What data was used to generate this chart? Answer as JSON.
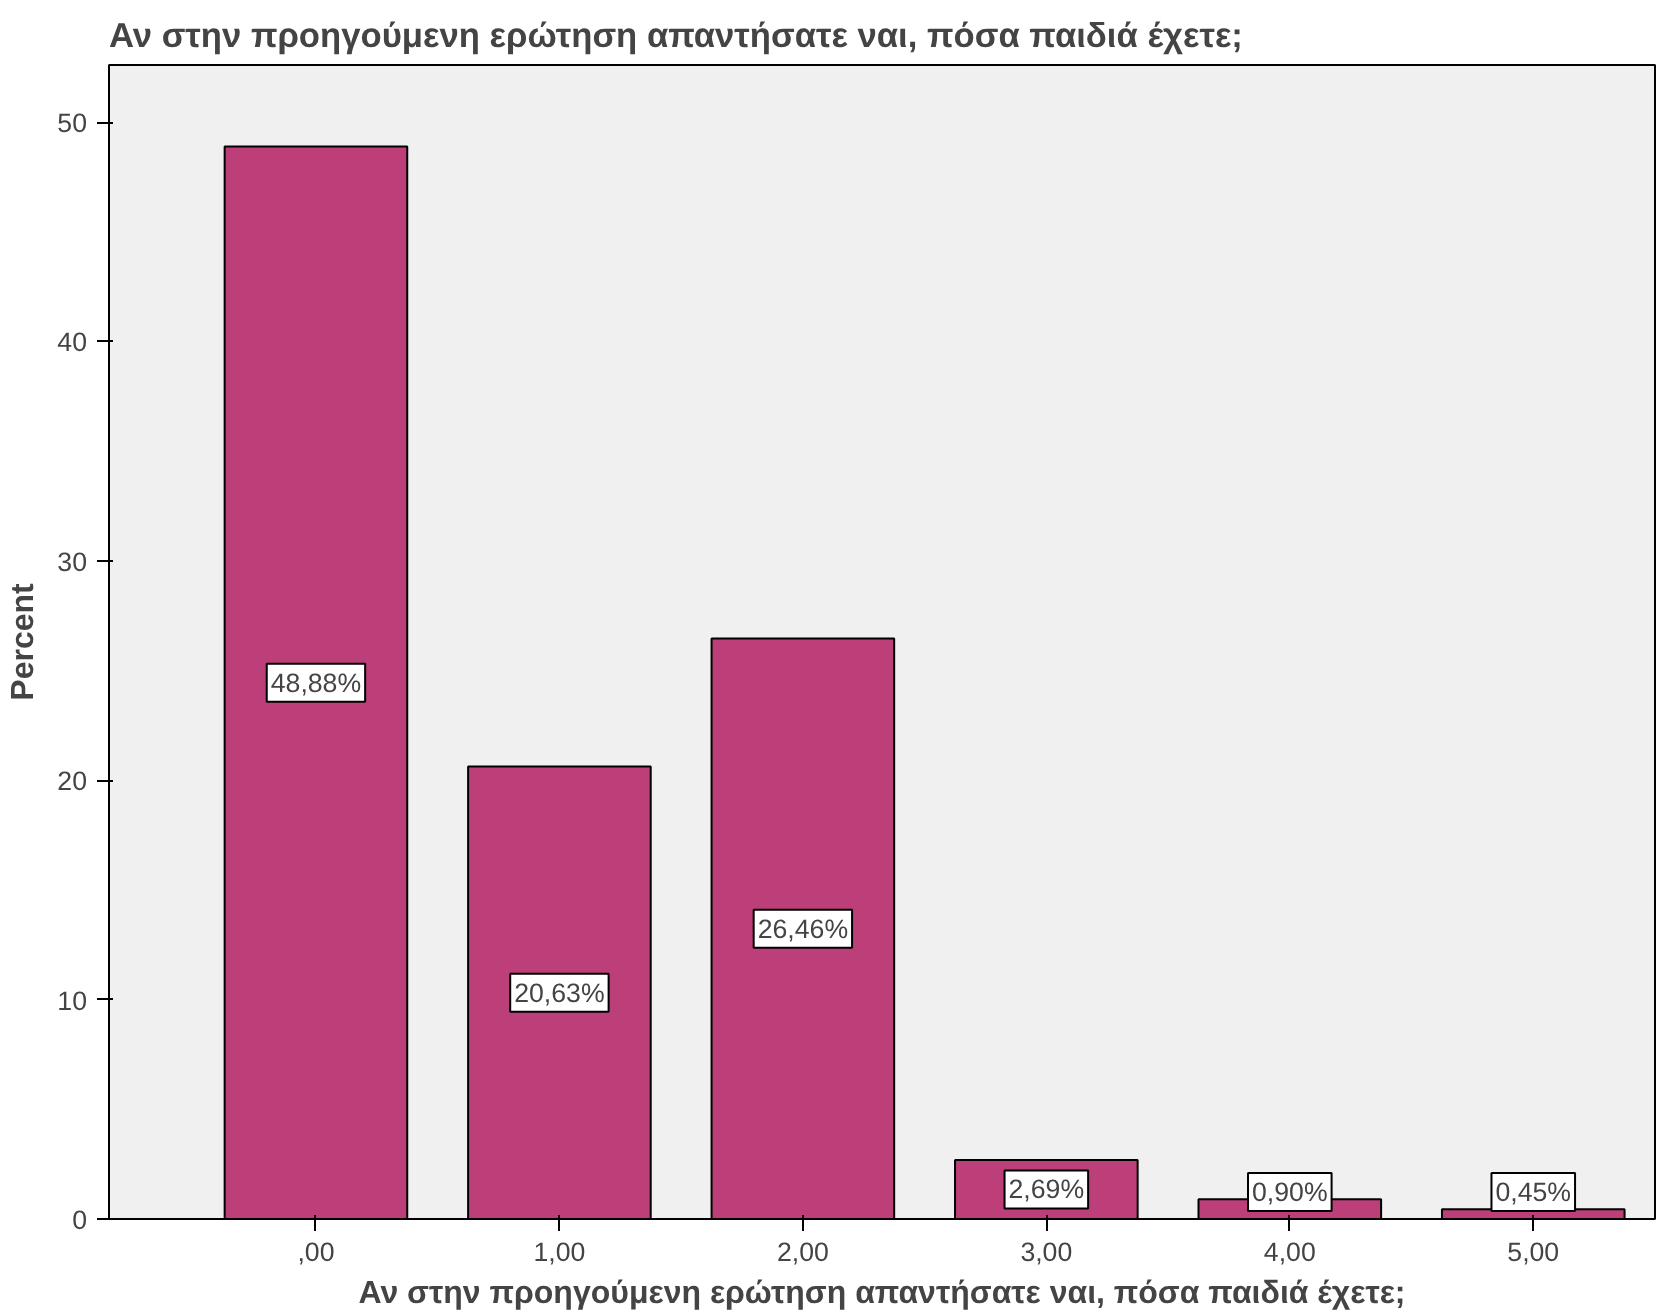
{
  "chart_data": {
    "type": "bar",
    "title": "Αν στην προηγούμενη ερώτηση απαντήσατε ναι, πόσα παιδιά έχετε;",
    "xlabel": "Αν στην προηγούμενη ερώτηση απαντήσατε ναι, πόσα παιδιά έχετε;",
    "ylabel": "Percent",
    "categories": [
      ",00",
      "1,00",
      "2,00",
      "3,00",
      "4,00",
      "5,00"
    ],
    "values": [
      48.88,
      20.63,
      26.46,
      2.69,
      0.9,
      0.45
    ],
    "value_labels": [
      "48,88%",
      "20,63%",
      "26,46%",
      "2,69%",
      "0,90%",
      "0,45%"
    ],
    "color": "#bc3f7a",
    "ylim": [
      0,
      52.6
    ],
    "yticks": [
      0,
      10,
      20,
      30,
      40,
      50
    ],
    "grid": false
  }
}
